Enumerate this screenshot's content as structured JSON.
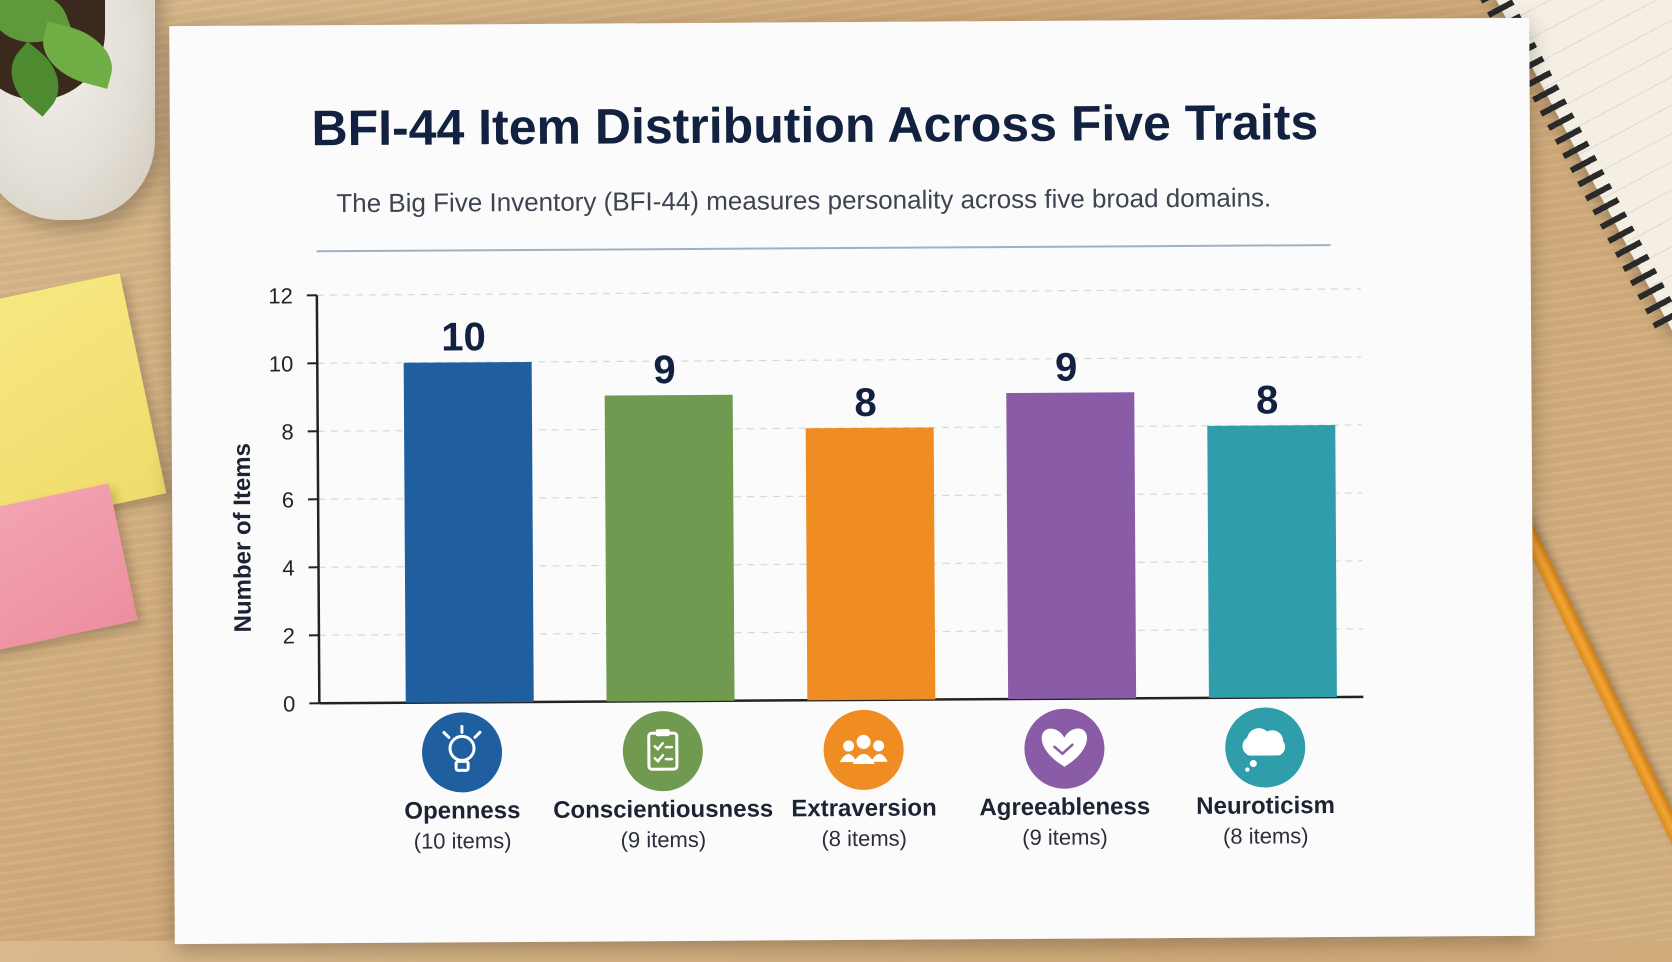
{
  "chart_data": {
    "type": "bar",
    "title": "BFI-44 Item Distribution Across Five Traits",
    "subtitle": "The Big Five Inventory (BFI-44) measures personality across five broad domains.",
    "ylabel": "Number of Items",
    "xlabel": "",
    "ylim": [
      0,
      12
    ],
    "yticks": [
      0,
      2,
      4,
      6,
      8,
      10,
      12
    ],
    "grid": true,
    "categories": [
      "Openness",
      "Conscientiousness",
      "Extraversion",
      "Agreeableness",
      "Neuroticism"
    ],
    "values": [
      10,
      9,
      8,
      9,
      8
    ],
    "sublabels": [
      "(10 items)",
      "(9 items)",
      "(8 items)",
      "(9 items)",
      "(8 items)"
    ],
    "colors": [
      "#1f5fa0",
      "#6f9a4f",
      "#ef8c22",
      "#8a5ca8",
      "#2f9eaa"
    ],
    "icons": [
      "lightbulb-icon",
      "clipboard-checklist-icon",
      "people-group-icon",
      "handshake-heart-icon",
      "thought-cloud-icon"
    ]
  }
}
